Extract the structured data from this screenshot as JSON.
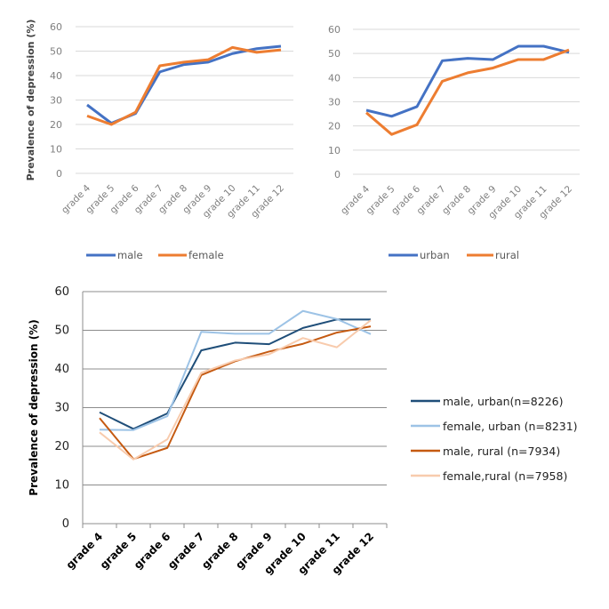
{
  "chart_data": [
    {
      "type": "line",
      "ylabel": "Prevalence of depression (%)",
      "ylim": [
        0,
        60
      ],
      "yticks": [
        "0",
        "10",
        "20",
        "30",
        "40",
        "50",
        "60"
      ],
      "grid": true,
      "legend_position": "bottom",
      "categories": [
        "grade 4",
        "grade 5",
        "grade 6",
        "grade 7",
        "grade 8",
        "grade 9",
        "grade 10",
        "grade 11",
        "grade 12"
      ],
      "series": [
        {
          "name": "male",
          "color": "#4472c4",
          "values": [
            28,
            20.5,
            24.5,
            41.5,
            44.5,
            45.5,
            49,
            51,
            52
          ]
        },
        {
          "name": "female",
          "color": "#ed7d31",
          "values": [
            23.5,
            20,
            25,
            44,
            45.5,
            46.5,
            51.5,
            49.5,
            50.5
          ]
        }
      ]
    },
    {
      "type": "line",
      "ylabel": "",
      "ylim": [
        0,
        60
      ],
      "yticks": [
        "0",
        "10",
        "20",
        "30",
        "40",
        "50",
        "60"
      ],
      "grid": true,
      "legend_position": "bottom",
      "categories": [
        "grade 4",
        "grade 5",
        "grade 6",
        "grade 7",
        "grade 8",
        "grade 9",
        "grade 10",
        "grade 11",
        "grade 12"
      ],
      "series": [
        {
          "name": "urban",
          "color": "#4472c4",
          "values": [
            26.5,
            24,
            28,
            47,
            48,
            47.5,
            53,
            53,
            50.5
          ]
        },
        {
          "name": "rural",
          "color": "#ed7d31",
          "values": [
            25.5,
            16.5,
            20.5,
            38.5,
            42,
            44,
            47.5,
            47.5,
            51.5
          ]
        }
      ]
    },
    {
      "type": "line",
      "ylabel": "Prevalence of depression (%)",
      "ylim": [
        0,
        60
      ],
      "yticks": [
        "0",
        "10",
        "20",
        "30",
        "40",
        "50",
        "60"
      ],
      "grid": true,
      "legend_position": "right",
      "categories": [
        "grade 4",
        "grade 5",
        "grade 6",
        "grade 7",
        "grade 8",
        "grade 9",
        "grade 10",
        "grade 11",
        "grade 12"
      ],
      "series": [
        {
          "name": "male, urban(n=8226)",
          "color": "#1f4e79",
          "values": [
            28.8,
            24.5,
            28.5,
            44.8,
            46.8,
            46.4,
            50.6,
            52.8,
            52.8
          ]
        },
        {
          "name": "female, urban (n=8231)",
          "color": "#9dc3e6",
          "values": [
            24.3,
            24.2,
            27.8,
            49.6,
            49.1,
            49.1,
            55,
            52.9,
            49
          ]
        },
        {
          "name": "male, rural (n=7934)",
          "color": "#c55a11",
          "values": [
            27.3,
            16.7,
            19.6,
            38.4,
            42,
            44.5,
            46.5,
            49.4,
            51
          ]
        },
        {
          "name": "female,rural (n=7958)",
          "color": "#f8cbad",
          "values": [
            23.6,
            16.6,
            21.8,
            39,
            42.2,
            43.8,
            48,
            45.6,
            52.6
          ]
        }
      ]
    }
  ]
}
